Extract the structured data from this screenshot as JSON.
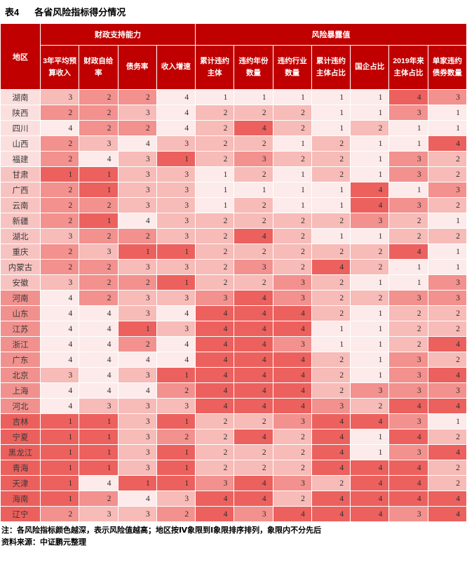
{
  "title": {
    "label": "表4",
    "text": "各省风险指标得分情况"
  },
  "table": {
    "corner_header": "地区",
    "groups": [
      {
        "label": "财政支持能力",
        "span": 4
      },
      {
        "label": "风险暴露值",
        "span": 7
      }
    ],
    "columns": [
      "3年平均预算收入",
      "财政自给率",
      "债务率",
      "收入增速",
      "累计违约主体",
      "违约年份数量",
      "违约行业数量",
      "累计违约主体占比",
      "国企占比",
      "2019年来主体占比",
      "单家违约债券数量"
    ],
    "fiscal_col_count": 4,
    "rows": [
      {
        "region": "湖南",
        "quadrant": 1,
        "scores": [
          3,
          2,
          2,
          4,
          1,
          1,
          1,
          1,
          1,
          4,
          3
        ]
      },
      {
        "region": "陕西",
        "quadrant": 1,
        "scores": [
          2,
          2,
          3,
          4,
          2,
          2,
          2,
          1,
          1,
          3,
          1
        ]
      },
      {
        "region": "四川",
        "quadrant": 1,
        "scores": [
          4,
          2,
          2,
          4,
          2,
          4,
          2,
          1,
          2,
          1,
          1
        ]
      },
      {
        "region": "山西",
        "quadrant": 1,
        "scores": [
          2,
          3,
          4,
          3,
          2,
          2,
          1,
          2,
          1,
          1,
          4
        ]
      },
      {
        "region": "福建",
        "quadrant": 1,
        "scores": [
          2,
          4,
          3,
          1,
          2,
          3,
          2,
          2,
          1,
          3,
          2
        ]
      },
      {
        "region": "甘肃",
        "quadrant": 2,
        "scores": [
          1,
          1,
          3,
          3,
          1,
          2,
          1,
          2,
          1,
          3,
          2
        ]
      },
      {
        "region": "广西",
        "quadrant": 2,
        "scores": [
          2,
          1,
          3,
          3,
          1,
          1,
          1,
          1,
          4,
          1,
          3
        ]
      },
      {
        "region": "云南",
        "quadrant": 2,
        "scores": [
          2,
          2,
          3,
          3,
          1,
          2,
          1,
          1,
          4,
          3,
          2
        ]
      },
      {
        "region": "新疆",
        "quadrant": 2,
        "scores": [
          2,
          1,
          4,
          3,
          2,
          2,
          2,
          2,
          3,
          2,
          1
        ]
      },
      {
        "region": "湖北",
        "quadrant": 2,
        "scores": [
          3,
          2,
          2,
          3,
          2,
          4,
          2,
          1,
          1,
          2,
          2
        ]
      },
      {
        "region": "重庆",
        "quadrant": 2,
        "scores": [
          2,
          3,
          1,
          1,
          2,
          2,
          2,
          2,
          2,
          4,
          1
        ]
      },
      {
        "region": "内蒙古",
        "quadrant": 2,
        "scores": [
          2,
          2,
          3,
          3,
          2,
          3,
          2,
          4,
          2,
          1,
          1
        ]
      },
      {
        "region": "安徽",
        "quadrant": 2,
        "scores": [
          3,
          2,
          2,
          1,
          2,
          2,
          3,
          2,
          1,
          1,
          3
        ]
      },
      {
        "region": "河南",
        "quadrant": 3,
        "scores": [
          4,
          2,
          3,
          3,
          3,
          4,
          3,
          2,
          2,
          3,
          3
        ]
      },
      {
        "region": "山东",
        "quadrant": 3,
        "scores": [
          4,
          4,
          3,
          4,
          4,
          4,
          4,
          2,
          1,
          2,
          2
        ]
      },
      {
        "region": "江苏",
        "quadrant": 3,
        "scores": [
          4,
          4,
          1,
          3,
          4,
          4,
          4,
          1,
          1,
          2,
          2
        ]
      },
      {
        "region": "浙江",
        "quadrant": 3,
        "scores": [
          4,
          4,
          2,
          4,
          4,
          4,
          3,
          1,
          1,
          2,
          4
        ]
      },
      {
        "region": "广东",
        "quadrant": 3,
        "scores": [
          4,
          4,
          4,
          4,
          4,
          4,
          4,
          2,
          1,
          3,
          2
        ]
      },
      {
        "region": "北京",
        "quadrant": 3,
        "scores": [
          3,
          4,
          3,
          1,
          4,
          4,
          4,
          2,
          1,
          3,
          4
        ]
      },
      {
        "region": "上海",
        "quadrant": 3,
        "scores": [
          4,
          4,
          4,
          2,
          4,
          4,
          4,
          2,
          3,
          3,
          3
        ]
      },
      {
        "region": "河北",
        "quadrant": 3,
        "scores": [
          4,
          3,
          3,
          3,
          4,
          4,
          4,
          3,
          2,
          4,
          4
        ]
      },
      {
        "region": "吉林",
        "quadrant": 4,
        "scores": [
          1,
          1,
          3,
          1,
          2,
          2,
          3,
          4,
          4,
          3,
          1
        ]
      },
      {
        "region": "宁夏",
        "quadrant": 4,
        "scores": [
          1,
          1,
          3,
          2,
          2,
          4,
          2,
          4,
          1,
          4,
          2
        ]
      },
      {
        "region": "黑龙江",
        "quadrant": 4,
        "scores": [
          1,
          1,
          3,
          1,
          2,
          2,
          2,
          4,
          1,
          3,
          4
        ]
      },
      {
        "region": "青海",
        "quadrant": 4,
        "scores": [
          1,
          1,
          3,
          1,
          2,
          2,
          2,
          4,
          4,
          4,
          2
        ]
      },
      {
        "region": "天津",
        "quadrant": 4,
        "scores": [
          1,
          4,
          1,
          1,
          3,
          4,
          3,
          2,
          4,
          4,
          2
        ]
      },
      {
        "region": "海南",
        "quadrant": 4,
        "scores": [
          1,
          2,
          4,
          3,
          4,
          4,
          2,
          4,
          4,
          4,
          4
        ]
      },
      {
        "region": "辽宁",
        "quadrant": 4,
        "scores": [
          2,
          3,
          3,
          2,
          4,
          3,
          4,
          4,
          4,
          3,
          4
        ]
      }
    ]
  },
  "notes": {
    "note": "注：各风险指标颜色越深，表示风险值越高；地区按Ⅳ象限到Ⅰ象限排序排列，象限内不分先后",
    "source": "资料来源：中证鹏元整理"
  },
  "colors": {
    "header_bg": "#C00000",
    "header_text": "#FFFFFF",
    "grid_line": "#FFFFFF",
    "cell_levels": [
      "#FCEBEA",
      "#F7BBB8",
      "#F2918E",
      "#EC615E"
    ],
    "region_levels": [
      "#FBDFDE",
      "#F7C3C1",
      "#F0918E",
      "#EB605D"
    ]
  }
}
